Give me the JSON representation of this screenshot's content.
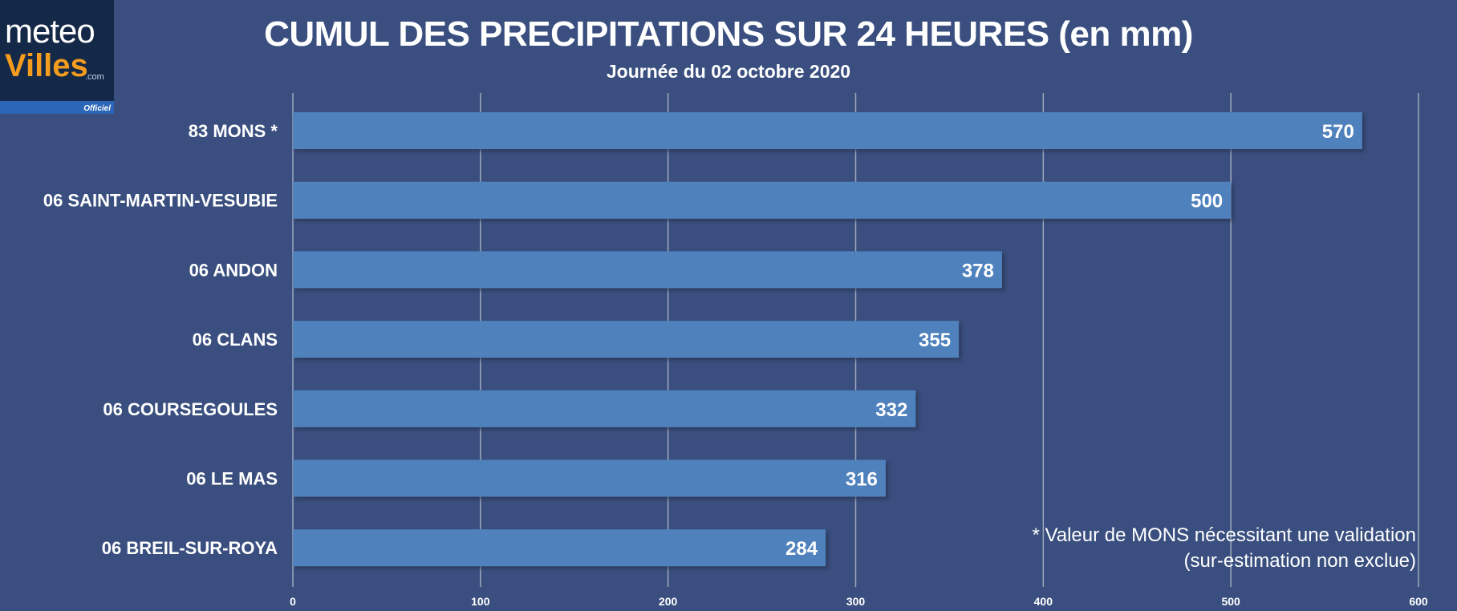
{
  "logo": {
    "line1": "meteo",
    "line2": "Villes",
    "domain": ".com",
    "badge": "Officiel"
  },
  "header": {
    "title": "CUMUL DES PRECIPITATIONS SUR 24 HEURES  (en mm)",
    "subtitle": "Journée du 02 octobre 2020"
  },
  "note": {
    "line1": "* Valeur de MONS nécessitant une validation",
    "line2": "(sur-estimation non exclue)"
  },
  "colors": {
    "background": "#3a4f7f",
    "bar": "#4f81bd",
    "grid": "#9ea9bd",
    "text": "#ffffff"
  },
  "chart_data": {
    "type": "bar",
    "orientation": "horizontal",
    "title": "CUMUL DES PRECIPITATIONS SUR 24 HEURES  (en mm)",
    "subtitle": "Journée du 02 octobre 2020",
    "unit": "mm",
    "categories": [
      "83 MONS *",
      "06 SAINT-MARTIN-VESUBIE",
      "06 ANDON",
      "06 CLANS",
      "06 COURSEGOULES",
      "06 LE MAS",
      "06 BREIL-SUR-ROYA"
    ],
    "values": [
      570,
      500,
      378,
      355,
      332,
      316,
      284
    ],
    "xlim": [
      0,
      600
    ],
    "xticks": [
      0,
      100,
      200,
      300,
      400,
      500,
      600
    ],
    "grid": true,
    "data_labels": true
  }
}
